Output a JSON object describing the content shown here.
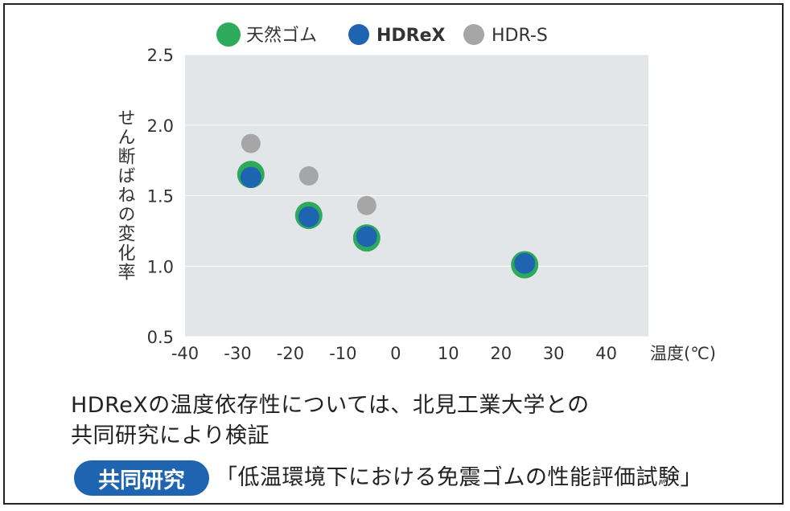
{
  "chart_data": {
    "type": "scatter",
    "xlabel": "温度(℃)",
    "ylabel": "せん断ばねの変化率",
    "xlim": [
      -40,
      48
    ],
    "ylim": [
      0.5,
      2.5
    ],
    "x_ticks": [
      -40,
      -30,
      -20,
      -10,
      0,
      10,
      20,
      30,
      40
    ],
    "y_ticks": [
      0.5,
      1.0,
      1.5,
      2.0,
      2.5
    ],
    "grid": true,
    "legend_position": "top",
    "series": [
      {
        "name": "天然ゴム",
        "color": "#2eaa5c",
        "points": [
          [
            -27.5,
            1.65
          ],
          [
            -16.5,
            1.36
          ],
          [
            -5.5,
            1.2
          ],
          [
            24.5,
            1.01
          ]
        ]
      },
      {
        "name": "HDReX",
        "color": "#1f64b0",
        "points": [
          [
            -27.5,
            1.63
          ],
          [
            -16.5,
            1.35
          ],
          [
            -5.5,
            1.21
          ],
          [
            24.5,
            1.02
          ]
        ]
      },
      {
        "name": "HDR-S",
        "color": "#a6a6a6",
        "points": [
          [
            -27.5,
            1.87
          ],
          [
            -16.5,
            1.64
          ],
          [
            -5.5,
            1.43
          ]
        ]
      }
    ]
  },
  "caption": {
    "line1": "HDReXの温度依存性については、北見工業大学との",
    "line2": "共同研究により検証"
  },
  "badge": {
    "label": "共同研究"
  },
  "research_title": "「低温環境下における免震ゴムの性能評価試験」"
}
